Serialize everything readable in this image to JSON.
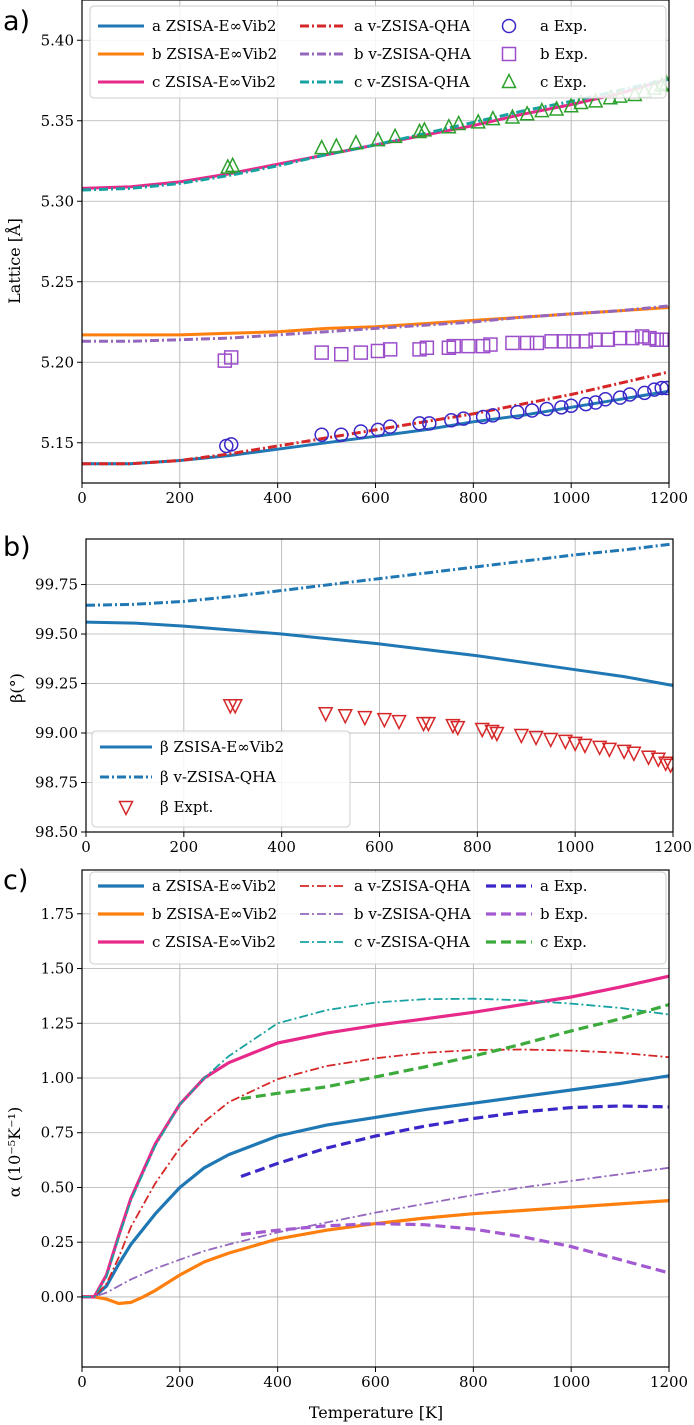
{
  "colors": {
    "a_e": "#1f77b4",
    "b_e": "#ff7f0e",
    "c_e": "#e7298a",
    "a_v": "#d62728",
    "b_v": "#9467bd",
    "c_v": "#17a2a2",
    "a_x": "#3a27c8",
    "b_x": "#9b4dca",
    "c_x": "#2ca02c",
    "beta_e": "#1f77b4",
    "beta_v": "#1f77b4",
    "beta_x": "#d62728",
    "ac_x": "#3a27c8",
    "bc_x": "#a35ad0",
    "cc_x": "#3cab3c"
  },
  "chart_data": [
    {
      "id": "a",
      "panel_label": "a)",
      "type": "line",
      "xlabel": "",
      "ylabel": "Lattice [Å]",
      "xlim": [
        0,
        1200
      ],
      "ylim": [
        5.125,
        5.425
      ],
      "xticks": [
        "0",
        "200",
        "400",
        "600",
        "800",
        "1000",
        "1200"
      ],
      "yticks": [
        "5.15",
        "5.20",
        "5.25",
        "5.30",
        "5.35",
        "5.40"
      ],
      "legend": {
        "position": "top",
        "columns": [
          [
            "a ZSISA-E∞Vib2",
            "b ZSISA-E∞Vib2",
            "c ZSISA-E∞Vib2"
          ],
          [
            "a v-ZSISA-QHA",
            "b v-ZSISA-QHA",
            "c v-ZSISA-QHA"
          ],
          [
            "a Exp.",
            "b Exp.",
            "c Exp."
          ]
        ]
      },
      "series": [
        {
          "name": "a ZSISA-E∞Vib2",
          "color": "a_e",
          "style": "solid",
          "x": [
            0,
            100,
            200,
            300,
            400,
            500,
            600,
            700,
            800,
            900,
            1000,
            1100,
            1200
          ],
          "y": [
            5.137,
            5.137,
            5.139,
            5.142,
            5.146,
            5.15,
            5.154,
            5.158,
            5.163,
            5.167,
            5.172,
            5.177,
            5.182
          ]
        },
        {
          "name": "b ZSISA-E∞Vib2",
          "color": "b_e",
          "style": "solid",
          "x": [
            0,
            100,
            200,
            300,
            400,
            500,
            600,
            700,
            800,
            900,
            1000,
            1100,
            1200
          ],
          "y": [
            5.217,
            5.217,
            5.217,
            5.218,
            5.219,
            5.221,
            5.222,
            5.224,
            5.226,
            5.228,
            5.23,
            5.232,
            5.234
          ]
        },
        {
          "name": "c ZSISA-E∞Vib2",
          "color": "c_e",
          "style": "solid",
          "x": [
            0,
            100,
            200,
            300,
            400,
            500,
            600,
            700,
            800,
            900,
            1000,
            1100,
            1200
          ],
          "y": [
            5.308,
            5.309,
            5.312,
            5.317,
            5.323,
            5.329,
            5.335,
            5.341,
            5.347,
            5.354,
            5.36,
            5.367,
            5.376
          ]
        },
        {
          "name": "a v-ZSISA-QHA",
          "color": "a_v",
          "style": "dashdot",
          "x": [
            0,
            100,
            200,
            300,
            400,
            500,
            600,
            700,
            800,
            900,
            1000,
            1100,
            1200
          ],
          "y": [
            5.137,
            5.137,
            5.139,
            5.143,
            5.148,
            5.153,
            5.158,
            5.163,
            5.168,
            5.174,
            5.18,
            5.187,
            5.194
          ]
        },
        {
          "name": "b v-ZSISA-QHA",
          "color": "b_v",
          "style": "dashdot",
          "x": [
            0,
            100,
            200,
            300,
            400,
            500,
            600,
            700,
            800,
            900,
            1000,
            1100,
            1200
          ],
          "y": [
            5.213,
            5.213,
            5.214,
            5.215,
            5.217,
            5.219,
            5.221,
            5.223,
            5.225,
            5.228,
            5.23,
            5.232,
            5.235
          ]
        },
        {
          "name": "c v-ZSISA-QHA",
          "color": "c_v",
          "style": "dashdot",
          "x": [
            0,
            100,
            200,
            300,
            400,
            500,
            600,
            700,
            800,
            900,
            1000,
            1100,
            1200
          ],
          "y": [
            5.307,
            5.308,
            5.311,
            5.316,
            5.322,
            5.329,
            5.335,
            5.342,
            5.349,
            5.356,
            5.362,
            5.369,
            5.376
          ]
        },
        {
          "name": "a Exp.",
          "color": "a_x",
          "marker": "circle",
          "x": [
            295,
            305,
            490,
            530,
            570,
            605,
            630,
            690,
            710,
            755,
            780,
            820,
            840,
            890,
            920,
            950,
            980,
            1000,
            1030,
            1050,
            1070,
            1100,
            1120,
            1150,
            1170,
            1185,
            1195
          ],
          "y": [
            5.148,
            5.149,
            5.155,
            5.155,
            5.157,
            5.158,
            5.16,
            5.162,
            5.162,
            5.164,
            5.165,
            5.166,
            5.167,
            5.169,
            5.17,
            5.171,
            5.172,
            5.173,
            5.174,
            5.175,
            5.177,
            5.178,
            5.18,
            5.181,
            5.183,
            5.184,
            5.184
          ]
        },
        {
          "name": "b Exp.",
          "color": "b_x",
          "marker": "square",
          "x": [
            292,
            305,
            490,
            530,
            570,
            605,
            630,
            690,
            705,
            750,
            760,
            790,
            820,
            835,
            880,
            910,
            930,
            960,
            985,
            1005,
            1030,
            1050,
            1075,
            1100,
            1125,
            1145,
            1160,
            1175,
            1185,
            1195
          ],
          "y": [
            5.201,
            5.203,
            5.206,
            5.205,
            5.206,
            5.207,
            5.208,
            5.208,
            5.209,
            5.209,
            5.21,
            5.21,
            5.21,
            5.211,
            5.212,
            5.212,
            5.212,
            5.213,
            5.213,
            5.213,
            5.213,
            5.214,
            5.214,
            5.215,
            5.215,
            5.216,
            5.215,
            5.214,
            5.214,
            5.214
          ]
        },
        {
          "name": "c Exp.",
          "color": "c_x",
          "marker": "triangle",
          "x": [
            298,
            308,
            490,
            520,
            560,
            605,
            640,
            690,
            700,
            750,
            770,
            810,
            840,
            880,
            910,
            940,
            970,
            1000,
            1020,
            1050,
            1080,
            1100,
            1130,
            1150,
            1170,
            1185,
            1195
          ],
          "y": [
            5.321,
            5.322,
            5.333,
            5.334,
            5.336,
            5.338,
            5.34,
            5.343,
            5.344,
            5.346,
            5.348,
            5.349,
            5.351,
            5.352,
            5.354,
            5.356,
            5.357,
            5.359,
            5.361,
            5.362,
            5.364,
            5.365,
            5.366,
            5.368,
            5.37,
            5.372,
            5.373
          ]
        }
      ]
    },
    {
      "id": "b",
      "panel_label": "b)",
      "type": "line",
      "xlabel": "",
      "ylabel": "β(°)",
      "xlim": [
        0,
        1200
      ],
      "ylim": [
        98.5,
        99.98
      ],
      "xticks": [
        "0",
        "200",
        "400",
        "600",
        "800",
        "1000",
        "1200"
      ],
      "yticks": [
        "98.50",
        "98.75",
        "99.00",
        "99.25",
        "99.50",
        "99.75"
      ],
      "legend": {
        "position": "lower-left",
        "columns": [
          [
            "β ZSISA-E∞Vib2",
            "β v-ZSISA-QHA",
            "β Expt."
          ]
        ]
      },
      "series": [
        {
          "name": "β ZSISA-E∞Vib2",
          "color": "beta_e",
          "style": "solid",
          "x": [
            0,
            100,
            200,
            300,
            400,
            500,
            600,
            700,
            800,
            900,
            1000,
            1100,
            1200
          ],
          "y": [
            99.56,
            99.555,
            99.54,
            99.52,
            99.5,
            99.475,
            99.45,
            99.42,
            99.39,
            99.355,
            99.32,
            99.285,
            99.24
          ]
        },
        {
          "name": "β v-ZSISA-QHA",
          "color": "beta_v",
          "style": "dashdot",
          "x": [
            0,
            100,
            200,
            300,
            400,
            500,
            600,
            700,
            800,
            900,
            1000,
            1100,
            1200
          ],
          "y": [
            99.645,
            99.65,
            99.665,
            99.69,
            99.72,
            99.75,
            99.78,
            99.81,
            99.84,
            99.87,
            99.9,
            99.925,
            99.955
          ]
        },
        {
          "name": "β Expt.",
          "color": "beta_x",
          "marker": "triangle-down",
          "x": [
            295,
            305,
            490,
            530,
            570,
            610,
            640,
            690,
            700,
            750,
            760,
            810,
            830,
            840,
            890,
            920,
            950,
            980,
            1000,
            1020,
            1050,
            1070,
            1100,
            1120,
            1150,
            1170,
            1185,
            1195
          ],
          "y": [
            99.14,
            99.14,
            99.1,
            99.09,
            99.08,
            99.07,
            99.06,
            99.05,
            99.05,
            99.04,
            99.03,
            99.02,
            99.01,
            99.0,
            98.99,
            98.98,
            98.97,
            98.96,
            98.95,
            98.94,
            98.93,
            98.92,
            98.91,
            98.9,
            98.88,
            98.87,
            98.85,
            98.84
          ]
        }
      ]
    },
    {
      "id": "c",
      "panel_label": "c)",
      "type": "line",
      "xlabel": "Temperature [K]",
      "ylabel": "α (10⁻⁵K⁻¹)",
      "xlim": [
        0,
        1200
      ],
      "ylim": [
        -0.32,
        1.95
      ],
      "xticks": [
        "0",
        "200",
        "400",
        "600",
        "800",
        "1000",
        "1200"
      ],
      "yticks": [
        "0.00",
        "0.25",
        "0.50",
        "0.75",
        "1.00",
        "1.25",
        "1.50",
        "1.75"
      ],
      "legend": {
        "position": "top",
        "columns": [
          [
            "a ZSISA-E∞Vib2",
            "b ZSISA-E∞Vib2",
            "c ZSISA-E∞Vib2"
          ],
          [
            "a v-ZSISA-QHA",
            "b v-ZSISA-QHA",
            "c v-ZSISA-QHA"
          ],
          [
            "a Exp.",
            "b Exp.",
            "c Exp."
          ]
        ]
      },
      "series": [
        {
          "name": "a ZSISA-E∞Vib2",
          "color": "a_e",
          "style": "solid",
          "width": 3.2,
          "x": [
            0,
            25,
            50,
            75,
            100,
            150,
            200,
            250,
            300,
            400,
            500,
            600,
            700,
            800,
            900,
            1000,
            1100,
            1200
          ],
          "y": [
            0,
            0,
            0.05,
            0.15,
            0.24,
            0.38,
            0.5,
            0.59,
            0.65,
            0.735,
            0.785,
            0.82,
            0.855,
            0.885,
            0.915,
            0.945,
            0.975,
            1.01
          ]
        },
        {
          "name": "b ZSISA-E∞Vib2",
          "color": "b_e",
          "style": "solid",
          "width": 3.2,
          "x": [
            0,
            25,
            50,
            75,
            100,
            125,
            150,
            200,
            250,
            300,
            400,
            500,
            600,
            700,
            800,
            900,
            1000,
            1100,
            1200
          ],
          "y": [
            0,
            0,
            -0.01,
            -0.03,
            -0.025,
            0,
            0.03,
            0.1,
            0.16,
            0.2,
            0.265,
            0.305,
            0.335,
            0.36,
            0.38,
            0.395,
            0.41,
            0.425,
            0.44
          ]
        },
        {
          "name": "c ZSISA-E∞Vib2",
          "color": "c_e",
          "style": "solid",
          "width": 3.2,
          "x": [
            0,
            25,
            50,
            75,
            100,
            150,
            200,
            250,
            300,
            400,
            500,
            600,
            700,
            800,
            900,
            1000,
            1100,
            1200
          ],
          "y": [
            0,
            0,
            0.1,
            0.28,
            0.45,
            0.7,
            0.88,
            1.0,
            1.07,
            1.16,
            1.205,
            1.24,
            1.27,
            1.3,
            1.335,
            1.37,
            1.415,
            1.465
          ]
        },
        {
          "name": "a v-ZSISA-QHA",
          "color": "a_v",
          "style": "dashdot",
          "width": 1.8,
          "x": [
            0,
            25,
            50,
            75,
            100,
            150,
            200,
            250,
            300,
            400,
            500,
            600,
            700,
            800,
            900,
            1000,
            1100,
            1200
          ],
          "y": [
            0,
            0,
            0.06,
            0.18,
            0.32,
            0.52,
            0.68,
            0.8,
            0.89,
            0.995,
            1.055,
            1.09,
            1.115,
            1.128,
            1.13,
            1.125,
            1.115,
            1.095
          ]
        },
        {
          "name": "b v-ZSISA-QHA",
          "color": "b_v",
          "style": "dashdot",
          "width": 1.8,
          "x": [
            0,
            25,
            50,
            75,
            100,
            150,
            200,
            250,
            300,
            400,
            500,
            600,
            700,
            800,
            900,
            1000,
            1100,
            1200
          ],
          "y": [
            0,
            0,
            0.02,
            0.05,
            0.08,
            0.13,
            0.17,
            0.21,
            0.24,
            0.295,
            0.34,
            0.385,
            0.425,
            0.465,
            0.5,
            0.53,
            0.56,
            0.59
          ]
        },
        {
          "name": "c v-ZSISA-QHA",
          "color": "c_v",
          "style": "dashdot",
          "width": 1.8,
          "x": [
            0,
            25,
            50,
            75,
            100,
            150,
            200,
            250,
            300,
            400,
            500,
            600,
            700,
            800,
            900,
            1000,
            1100,
            1200
          ],
          "y": [
            0,
            0,
            0.09,
            0.27,
            0.44,
            0.69,
            0.88,
            1.0,
            1.1,
            1.25,
            1.31,
            1.345,
            1.36,
            1.362,
            1.355,
            1.34,
            1.32,
            1.29
          ]
        },
        {
          "name": "a Exp.",
          "color": "ac_x",
          "style": "dashed",
          "width": 3.2,
          "x": [
            325,
            400,
            500,
            600,
            700,
            800,
            900,
            1000,
            1100,
            1200
          ],
          "y": [
            0.55,
            0.61,
            0.68,
            0.735,
            0.78,
            0.815,
            0.845,
            0.865,
            0.872,
            0.868
          ]
        },
        {
          "name": "b Exp.",
          "color": "bc_x",
          "style": "dashed",
          "width": 3.2,
          "x": [
            325,
            400,
            500,
            600,
            700,
            800,
            900,
            1000,
            1100,
            1200
          ],
          "y": [
            0.285,
            0.305,
            0.325,
            0.335,
            0.33,
            0.31,
            0.275,
            0.23,
            0.17,
            0.11
          ]
        },
        {
          "name": "c Exp.",
          "color": "cc_x",
          "style": "dashed",
          "width": 3.2,
          "x": [
            325,
            400,
            500,
            600,
            700,
            800,
            900,
            1000,
            1100,
            1200
          ],
          "y": [
            0.905,
            0.93,
            0.96,
            1.005,
            1.05,
            1.1,
            1.155,
            1.215,
            1.27,
            1.335
          ]
        }
      ]
    }
  ]
}
